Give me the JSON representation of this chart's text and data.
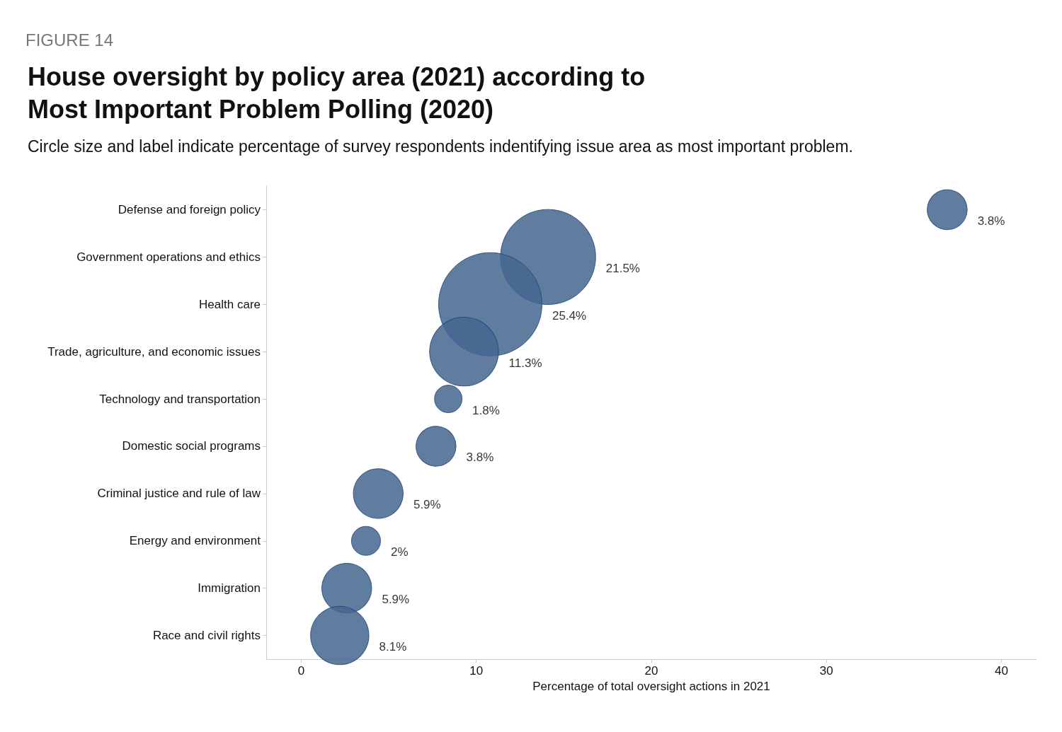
{
  "chart_data": {
    "type": "bubble",
    "title": "House oversight by policy area (2021) according to Most Important Problem Polling (2020)",
    "subtitle": "Circle size and label indicate percentage of survey respondents indentifying issue area as most important problem.",
    "annotations": [
      "FIGURE 14"
    ],
    "xlabel": "Percentage of total oversight actions in 2021",
    "categories": [
      "Defense and foreign policy",
      "Government operations and ethics",
      "Health care",
      "Trade, agriculture, and economic issues",
      "Technology and transportation",
      "Domestic social programs",
      "Criminal justice and rule of law",
      "Energy and environment",
      "Immigration",
      "Race and civil rights"
    ],
    "series": [
      {
        "color": "#44668f",
        "values": [
          36.9,
          14.1,
          10.8,
          9.3,
          8.4,
          7.7,
          4.4,
          3.7,
          2.6,
          2.2
        ],
        "sizes": [
          3.8,
          21.5,
          25.4,
          11.3,
          1.8,
          3.8,
          5.9,
          2,
          5.9,
          8.1
        ],
        "value_labels": [
          "3.8%",
          "21.5%",
          "25.4%",
          "11.3%",
          "1.8%",
          "3.8%",
          "5.9%",
          "2%",
          "5.9%",
          "8.1%"
        ]
      }
    ],
    "xlim": [
      -2,
      42
    ],
    "xticks": [
      0,
      10,
      20,
      30,
      40
    ],
    "orientation": "horizontal",
    "marker": "circle",
    "grid": false
  }
}
